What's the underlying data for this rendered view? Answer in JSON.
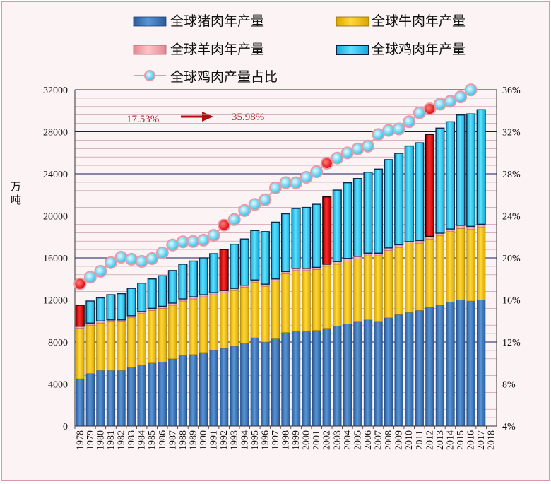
{
  "chart_data": {
    "type": "bar",
    "stacked": true,
    "ylabel": "万吨",
    "ylim": [
      0,
      32000
    ],
    "y_ticks": [
      "0",
      "4000",
      "8000",
      "12000",
      "16000",
      "20000",
      "24000",
      "28000",
      "32000"
    ],
    "y2lim": [
      0.04,
      0.36
    ],
    "y2_ticks": [
      "4%",
      "8%",
      "12%",
      "16%",
      "20%",
      "24%",
      "28%",
      "32%",
      "36%"
    ],
    "grid": true,
    "legend_position": "top",
    "categories": [
      "1978",
      "1979",
      "1980",
      "1981",
      "1982",
      "1983",
      "1984",
      "1985",
      "1986",
      "1987",
      "1988",
      "1989",
      "1990",
      "1991",
      "1992",
      "1993",
      "1994",
      "1995",
      "1996",
      "1997",
      "1998",
      "1999",
      "2000",
      "2001",
      "2002",
      "2003",
      "2004",
      "2005",
      "2006",
      "2007",
      "2008",
      "2009",
      "2010",
      "2011",
      "2012",
      "2013",
      "2014",
      "2015",
      "2016",
      "2017",
      "2018"
    ],
    "highlighted_years": [
      "1978",
      "1992",
      "2002",
      "2012"
    ],
    "series": [
      {
        "name": "全球猪肉年产量",
        "kind": "bar",
        "color": "#3a73b8",
        "values": [
          4500,
          5000,
          5300,
          5300,
          5300,
          5600,
          5800,
          6000,
          6100,
          6400,
          6700,
          6800,
          7000,
          7200,
          7400,
          7600,
          7900,
          8400,
          8000,
          8300,
          8900,
          9000,
          9000,
          9100,
          9300,
          9500,
          9700,
          9900,
          10100,
          9900,
          10300,
          10600,
          10800,
          11000,
          11300,
          11500,
          11800,
          12000,
          11900,
          12000,
          null
        ]
      },
      {
        "name": "全球牛肉年产量",
        "kind": "bar",
        "color": "#f0c000",
        "values": [
          4800,
          4600,
          4500,
          4600,
          4600,
          4700,
          4900,
          5000,
          5100,
          5100,
          5200,
          5300,
          5300,
          5300,
          5300,
          5300,
          5300,
          5300,
          5300,
          5500,
          5600,
          5800,
          5800,
          5800,
          5900,
          5900,
          6000,
          6000,
          6100,
          6300,
          6400,
          6400,
          6500,
          6400,
          6500,
          6600,
          6700,
          6800,
          6800,
          6900,
          null
        ]
      },
      {
        "name": "全球羊肉年产量",
        "kind": "bar",
        "color": "#f0a0a8",
        "values": [
          200,
          200,
          200,
          200,
          200,
          200,
          200,
          200,
          200,
          200,
          200,
          200,
          200,
          200,
          200,
          200,
          200,
          200,
          200,
          200,
          200,
          200,
          200,
          200,
          200,
          250,
          250,
          250,
          250,
          250,
          250,
          250,
          250,
          250,
          250,
          250,
          250,
          300,
          300,
          300,
          null
        ]
      },
      {
        "name": "全球鸡肉年产量",
        "kind": "bar",
        "color": "#2ec8ee",
        "values": [
          2000,
          2100,
          2200,
          2400,
          2500,
          2600,
          2700,
          2800,
          2900,
          3100,
          3300,
          3400,
          3500,
          3700,
          3900,
          4200,
          4400,
          4700,
          5000,
          5400,
          5500,
          5700,
          5800,
          6000,
          6400,
          6800,
          7200,
          7400,
          7700,
          8000,
          8400,
          8700,
          9100,
          9300,
          9700,
          10000,
          10200,
          10500,
          10700,
          10900,
          null
        ]
      },
      {
        "name": "全球鸡肉产量占比",
        "kind": "line",
        "color": "#2cc8ee",
        "axis": "right",
        "values": [
          0.1753,
          0.1817,
          0.1872,
          0.1955,
          0.2007,
          0.1987,
          0.1966,
          0.1993,
          0.2048,
          0.2123,
          0.2153,
          0.2156,
          0.2169,
          0.2214,
          0.2312,
          0.2365,
          0.2451,
          0.2509,
          0.2552,
          0.2666,
          0.2716,
          0.2715,
          0.2766,
          0.282,
          0.2901,
          0.295,
          0.2999,
          0.3037,
          0.3063,
          0.3174,
          0.3213,
          0.3227,
          0.3296,
          0.3381,
          0.3418,
          0.3463,
          0.349,
          0.3532,
          0.3598,
          null,
          null
        ]
      }
    ],
    "annotations": [
      {
        "text": "17.53%"
      },
      {
        "text": "35.98%"
      }
    ]
  }
}
